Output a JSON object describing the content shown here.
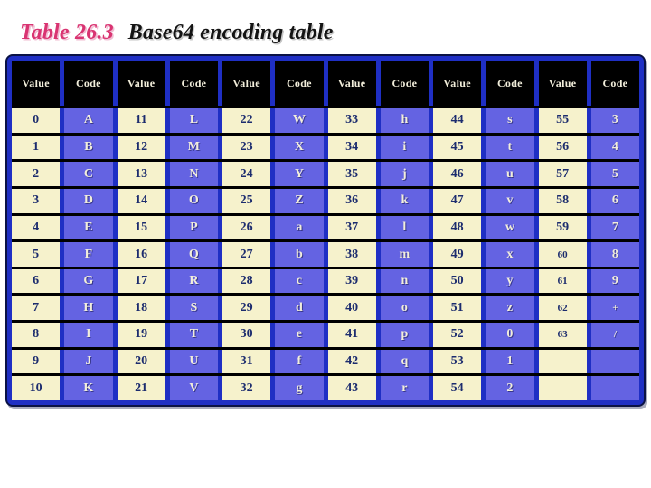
{
  "title": {
    "label": "Table 26.3",
    "text": "Base64 encoding table"
  },
  "colors": {
    "caption_label": "#d93472",
    "caption_text": "#141414",
    "frame_blue": "#1f2fc4",
    "frame_outline": "#0a1245",
    "header_bg": "#000000",
    "header_text": "#f2eedb",
    "value_bg": "#f6f2cc",
    "value_text": "#1c2c6e",
    "code_bg": "#6463e2",
    "code_text": "#f2eedb",
    "row_divider": "#000000",
    "page_bg": "#ffffff"
  },
  "table": {
    "columns": [
      "Value",
      "Code",
      "Value",
      "Code",
      "Value",
      "Code",
      "Value",
      "Code",
      "Value",
      "Code",
      "Value",
      "Code"
    ],
    "rows": [
      [
        "0",
        "A",
        "11",
        "L",
        "22",
        "W",
        "33",
        "h",
        "44",
        "s",
        "55",
        "3"
      ],
      [
        "1",
        "B",
        "12",
        "M",
        "23",
        "X",
        "34",
        "i",
        "45",
        "t",
        "56",
        "4"
      ],
      [
        "2",
        "C",
        "13",
        "N",
        "24",
        "Y",
        "35",
        "j",
        "46",
        "u",
        "57",
        "5"
      ],
      [
        "3",
        "D",
        "14",
        "O",
        "25",
        "Z",
        "36",
        "k",
        "47",
        "v",
        "58",
        "6"
      ],
      [
        "4",
        "E",
        "15",
        "P",
        "26",
        "a",
        "37",
        "l",
        "48",
        "w",
        "59",
        "7"
      ],
      [
        "5",
        "F",
        "16",
        "Q",
        "27",
        "b",
        "38",
        "m",
        "49",
        "x",
        "60",
        "8"
      ],
      [
        "6",
        "G",
        "17",
        "R",
        "28",
        "c",
        "39",
        "n",
        "50",
        "y",
        "61",
        "9"
      ],
      [
        "7",
        "H",
        "18",
        "S",
        "29",
        "d",
        "40",
        "o",
        "51",
        "z",
        "62",
        "+"
      ],
      [
        "8",
        "I",
        "19",
        "T",
        "30",
        "e",
        "41",
        "p",
        "52",
        "0",
        "63",
        "/"
      ],
      [
        "9",
        "J",
        "20",
        "U",
        "31",
        "f",
        "42",
        "q",
        "53",
        "1",
        "",
        ""
      ],
      [
        "10",
        "K",
        "21",
        "V",
        "32",
        "g",
        "43",
        "r",
        "54",
        "2",
        "",
        ""
      ]
    ],
    "small_cells": [
      [
        5,
        10
      ],
      [
        6,
        10
      ],
      [
        7,
        10
      ],
      [
        7,
        11
      ],
      [
        8,
        10
      ],
      [
        8,
        11
      ]
    ]
  }
}
